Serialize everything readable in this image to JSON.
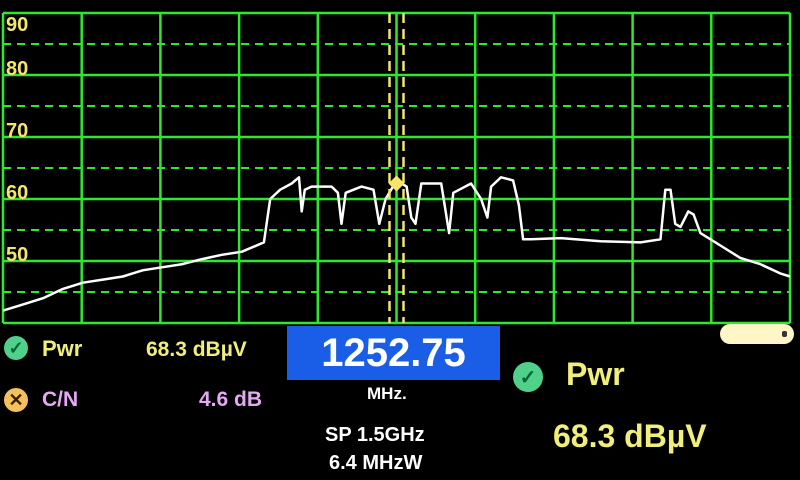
{
  "chart_data": {
    "type": "line",
    "title": "",
    "xlabel": "",
    "ylabel": "",
    "xlim": [
      502.75,
      2002.75
    ],
    "ylim": [
      40,
      90
    ],
    "y_ticks": [
      "90",
      "80",
      "70",
      "60",
      "50"
    ],
    "y_tick_values": [
      90,
      80,
      70,
      60,
      50
    ],
    "grid": true,
    "x_divisions": 10,
    "colors": {
      "grid": "#2ee82e",
      "trace": "#ffffff",
      "marker": "#f5e66a",
      "tick": "#f5e66a"
    },
    "marker": {
      "freq": 1252.75,
      "level": 62.5
    },
    "series": [
      {
        "x": [
          503,
          541,
          579,
          617,
          655,
          693,
          731,
          769,
          807,
          845,
          882,
          920,
          958,
          1000,
          1012,
          1031,
          1053,
          1067,
          1072,
          1078,
          1091,
          1129,
          1141,
          1148,
          1156,
          1186,
          1209,
          1220,
          1232,
          1253,
          1272,
          1281,
          1289,
          1300,
          1338,
          1353,
          1361,
          1395,
          1414,
          1426,
          1433,
          1452,
          1475,
          1486,
          1494,
          1509,
          1566,
          1642,
          1718,
          1756,
          1765,
          1775,
          1784,
          1794,
          1809,
          1819,
          1832,
          1870,
          1908,
          1946,
          1984,
          2003
        ],
        "y": [
          42,
          43,
          44,
          45.5,
          46.5,
          47,
          47.5,
          48.5,
          49,
          49.5,
          50.3,
          51,
          51.5,
          53,
          60,
          61.5,
          62.5,
          63.5,
          58,
          61.5,
          62,
          62,
          61,
          56,
          61,
          62,
          61.5,
          56,
          60,
          63,
          62,
          57,
          56,
          62.5,
          62.5,
          54.5,
          61,
          62.5,
          60,
          57,
          62,
          63.5,
          63,
          59,
          53.5,
          53.5,
          53.7,
          53.2,
          53,
          53.5,
          61.5,
          61.5,
          56,
          55.5,
          58,
          57.5,
          54.5,
          52.5,
          50.5,
          49.5,
          48,
          47.5
        ]
      }
    ]
  },
  "readout": {
    "pwr_label": "Pwr",
    "pwr_value": "68.3 dBµV",
    "pwr_status": "check-icon",
    "cn_label": "C/N",
    "cn_value": "4.6 dB",
    "cn_status": "x-icon",
    "frequency": "1252.75",
    "frequency_unit": "MHz.",
    "span": "SP 1.5GHz",
    "bandwidth": "6.4 MHzW",
    "big_pwr_label": "Pwr",
    "big_pwr_value": "68.3 dBµV"
  },
  "colors": {
    "pwr": "#f2ee7a",
    "cn": "#e6a8f5",
    "freq_box": "#1a5ee8",
    "text": "#ffffff"
  }
}
